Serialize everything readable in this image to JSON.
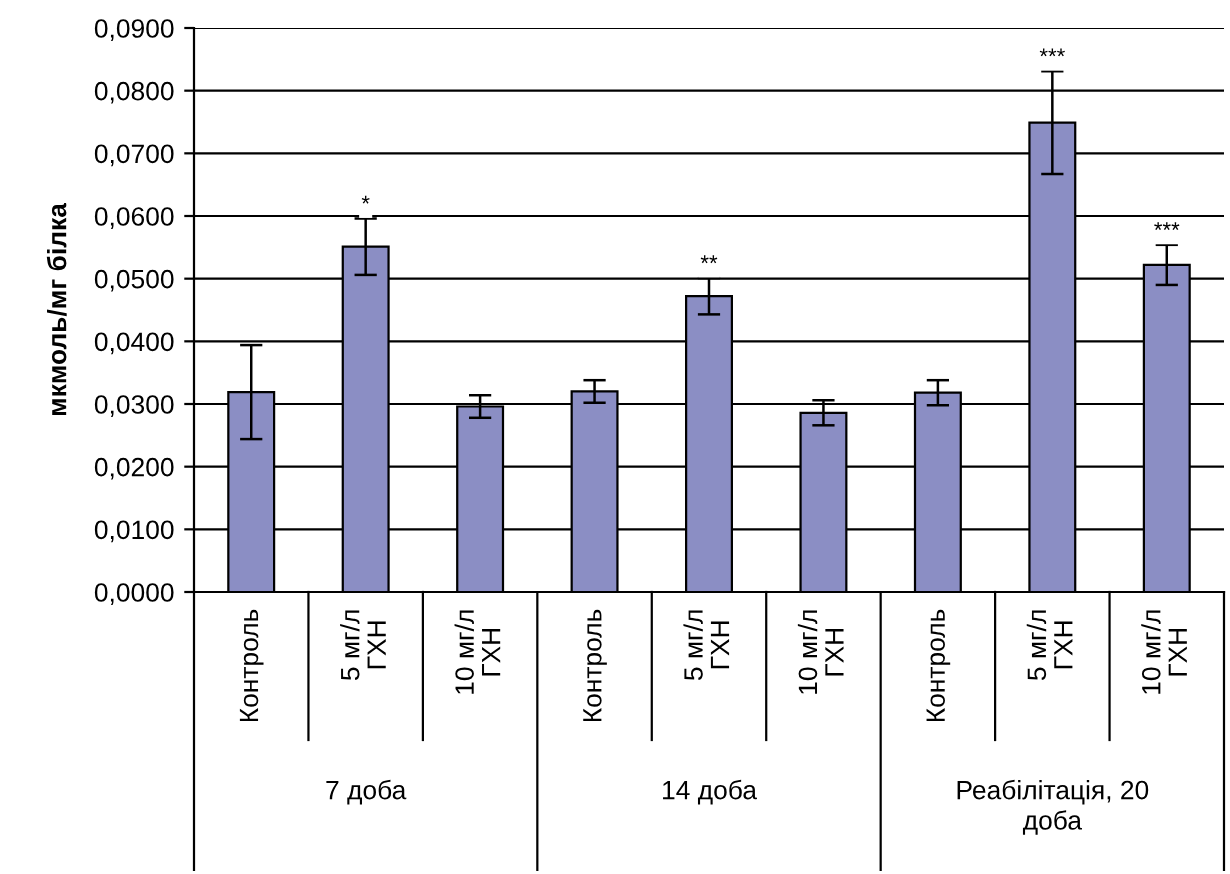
{
  "chart_data": {
    "type": "bar",
    "ylabel": "мкмоль/мг білка",
    "categories": [
      "Контроль",
      "5 мг/л\nГХН",
      "10 мг/л\nГХН",
      "Контроль",
      "5 мг/л\nГХН",
      "10 мг/л\nГХН",
      "Контроль",
      "5 мг/л\nГХН",
      "10 мг/л\nГХН"
    ],
    "values": [
      0.0319,
      0.0551,
      0.0296,
      0.032,
      0.0472,
      0.0286,
      0.0318,
      0.0749,
      0.0522
    ],
    "errors": [
      0.0075,
      0.0045,
      0.0018,
      0.0018,
      0.0029,
      0.002,
      0.002,
      0.0082,
      0.0032
    ],
    "value_labels": [
      null,
      "*",
      null,
      null,
      "**",
      null,
      null,
      "***",
      "***"
    ],
    "color": "#8b8ec4",
    "ylim": [
      0,
      0.09
    ],
    "yticks": [
      {
        "value": 0,
        "label": "0,0000"
      },
      {
        "value": 0.01,
        "label": "0,0100"
      },
      {
        "value": 0.02,
        "label": "0,0200"
      },
      {
        "value": 0.03,
        "label": "0,0300"
      },
      {
        "value": 0.04,
        "label": "0,0400"
      },
      {
        "value": 0.05,
        "label": "0,0500"
      },
      {
        "value": 0.06,
        "label": "0,0600"
      },
      {
        "value": 0.07,
        "label": "0,0700"
      },
      {
        "value": 0.08,
        "label": "0,0800"
      },
      {
        "value": 0.09,
        "label": "0,0900"
      }
    ],
    "grid": "y",
    "annotations": [
      "7 доба",
      "14 доба",
      "Реабілітація, 20\nдоба"
    ]
  }
}
